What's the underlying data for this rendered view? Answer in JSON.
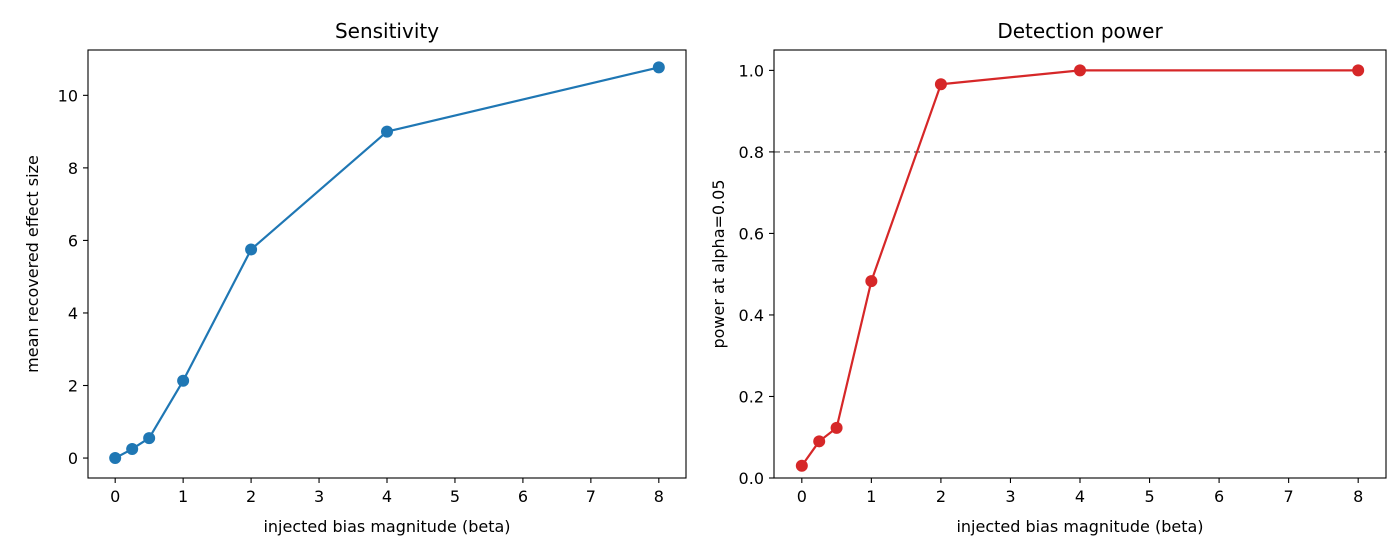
{
  "chart_data": [
    {
      "type": "line",
      "title": "Sensitivity",
      "xlabel": "injected bias magnitude (beta)",
      "ylabel": "mean recovered effect size",
      "xlim": [
        -0.4,
        8.4
      ],
      "ylim": [
        -0.55,
        11.25
      ],
      "xticks": [
        0,
        1,
        2,
        3,
        4,
        5,
        6,
        7,
        8
      ],
      "yticks": [
        0,
        2,
        4,
        6,
        8,
        10
      ],
      "tick_decimals": 0,
      "grid": false,
      "series": [
        {
          "color": "#1f77b4",
          "marker": "circle",
          "x": [
            0,
            0.25,
            0.5,
            1,
            2,
            4,
            8
          ],
          "y": [
            0.0,
            0.25,
            0.55,
            2.13,
            5.75,
            9.0,
            10.77
          ]
        }
      ]
    },
    {
      "type": "line",
      "title": "Detection power",
      "xlabel": "injected bias magnitude (beta)",
      "ylabel": "power at alpha=0.05",
      "xlim": [
        -0.4,
        8.4
      ],
      "ylim": [
        0.0,
        1.05
      ],
      "xticks": [
        0,
        1,
        2,
        3,
        4,
        5,
        6,
        7,
        8
      ],
      "yticks": [
        0.0,
        0.2,
        0.4,
        0.6,
        0.8,
        1.0
      ],
      "tick_decimals": 1,
      "grid": false,
      "reference_line": {
        "y": 0.8,
        "style": "dashed",
        "color": "#808080"
      },
      "series": [
        {
          "color": "#d62728",
          "marker": "circle",
          "x": [
            0,
            0.25,
            0.5,
            1,
            2,
            4,
            8
          ],
          "y": [
            0.03,
            0.09,
            0.123,
            0.483,
            0.966,
            1.0,
            1.0
          ]
        }
      ]
    }
  ]
}
